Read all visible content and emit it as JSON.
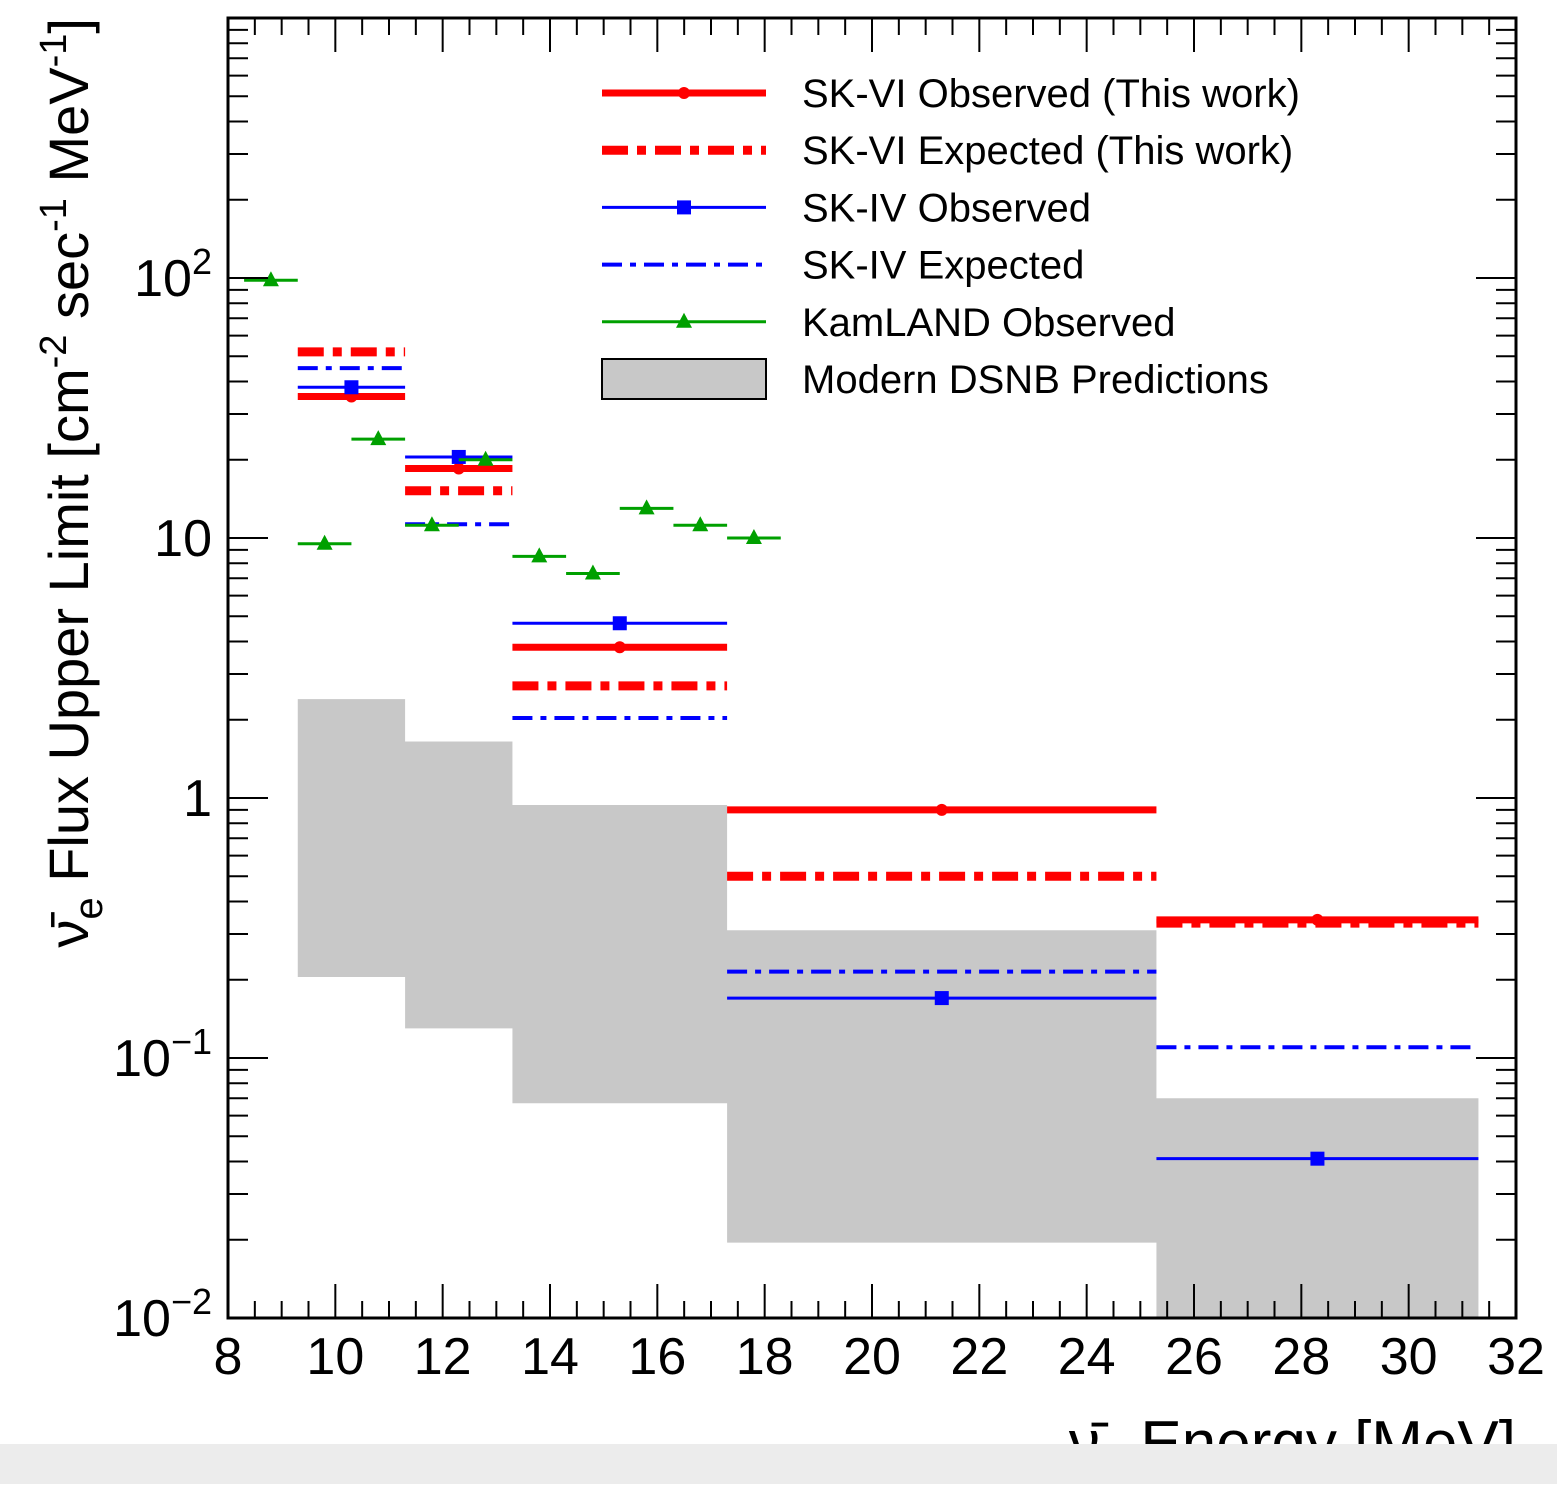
{
  "chart_data": {
    "type": "scatter",
    "xlabel": {
      "symbol": "ν̄",
      "sub": "e",
      "text": " Energy [MeV]"
    },
    "ylabel": {
      "symbol": "ν̄",
      "sub": "e",
      "text": " Flux Upper Limit [cm",
      "exp1": "-2",
      "mid": " sec",
      "exp2": "-1",
      "end": " MeV",
      "exp3": "-1",
      "close": "]"
    },
    "xlim": [
      8,
      32
    ],
    "ylim": [
      0.01,
      1000
    ],
    "yscale": "log",
    "x_ticks": [
      "8",
      "10",
      "12",
      "14",
      "16",
      "18",
      "20",
      "22",
      "24",
      "26",
      "28",
      "30",
      "32"
    ],
    "y_ticks": [
      {
        "value": 0.01,
        "base": "10",
        "exp": "−2"
      },
      {
        "value": 0.1,
        "base": "10",
        "exp": "−1"
      },
      {
        "value": 1,
        "base": "1",
        "exp": ""
      },
      {
        "value": 10,
        "base": "10",
        "exp": ""
      },
      {
        "value": 100,
        "base": "10",
        "exp": "2"
      }
    ],
    "legend_position": "top-right",
    "series": [
      {
        "name": "SK-VI Observed (This work)",
        "color": "#ff0000",
        "style": "solid-thick",
        "marker": "circle",
        "bins": [
          {
            "x0": 9.3,
            "x1": 11.3,
            "xc": 10.3,
            "y": 35
          },
          {
            "x0": 11.3,
            "x1": 13.3,
            "xc": 12.3,
            "y": 18.5
          },
          {
            "x0": 13.3,
            "x1": 17.3,
            "xc": 15.3,
            "y": 3.8
          },
          {
            "x0": 17.3,
            "x1": 25.3,
            "xc": 21.3,
            "y": 0.9
          },
          {
            "x0": 25.3,
            "x1": 31.3,
            "xc": 28.3,
            "y": 0.34
          }
        ]
      },
      {
        "name": "SK-VI Expected (This work)",
        "color": "#ff0000",
        "style": "dashdot-thick",
        "marker": "none",
        "bins": [
          {
            "x0": 9.3,
            "x1": 11.3,
            "xc": 10.3,
            "y": 52
          },
          {
            "x0": 11.3,
            "x1": 13.3,
            "xc": 12.3,
            "y": 15.2
          },
          {
            "x0": 13.3,
            "x1": 17.3,
            "xc": 15.3,
            "y": 2.7
          },
          {
            "x0": 17.3,
            "x1": 25.3,
            "xc": 21.3,
            "y": 0.5
          },
          {
            "x0": 25.3,
            "x1": 31.3,
            "xc": 28.3,
            "y": 0.33
          }
        ]
      },
      {
        "name": "SK-IV Observed",
        "color": "#0000ff",
        "style": "solid-thin",
        "marker": "square",
        "bins": [
          {
            "x0": 9.3,
            "x1": 11.3,
            "xc": 10.3,
            "y": 38
          },
          {
            "x0": 11.3,
            "x1": 13.3,
            "xc": 12.3,
            "y": 20.5
          },
          {
            "x0": 13.3,
            "x1": 17.3,
            "xc": 15.3,
            "y": 4.7
          },
          {
            "x0": 17.3,
            "x1": 25.3,
            "xc": 21.3,
            "y": 0.17
          },
          {
            "x0": 25.3,
            "x1": 31.3,
            "xc": 28.3,
            "y": 0.041
          }
        ]
      },
      {
        "name": "SK-IV Expected",
        "color": "#0000ff",
        "style": "dashdot-thin",
        "marker": "none",
        "bins": [
          {
            "x0": 9.3,
            "x1": 11.3,
            "xc": 10.3,
            "y": 45
          },
          {
            "x0": 11.3,
            "x1": 13.3,
            "xc": 12.3,
            "y": 11.3
          },
          {
            "x0": 13.3,
            "x1": 17.3,
            "xc": 15.3,
            "y": 2.03
          },
          {
            "x0": 17.3,
            "x1": 25.3,
            "xc": 21.3,
            "y": 0.215
          },
          {
            "x0": 25.3,
            "x1": 31.3,
            "xc": 28.3,
            "y": 0.11
          }
        ]
      },
      {
        "name": "KamLAND Observed",
        "color": "#00a000",
        "style": "solid-thin",
        "marker": "triangle",
        "bins": [
          {
            "x0": 8.3,
            "x1": 9.3,
            "xc": 8.8,
            "y": 98
          },
          {
            "x0": 9.3,
            "x1": 10.3,
            "xc": 9.8,
            "y": 9.5
          },
          {
            "x0": 10.3,
            "x1": 11.3,
            "xc": 10.8,
            "y": 24
          },
          {
            "x0": 11.3,
            "x1": 12.3,
            "xc": 11.8,
            "y": 11.2
          },
          {
            "x0": 12.3,
            "x1": 13.3,
            "xc": 12.8,
            "y": 20
          },
          {
            "x0": 13.3,
            "x1": 14.3,
            "xc": 13.8,
            "y": 8.5
          },
          {
            "x0": 14.3,
            "x1": 15.3,
            "xc": 14.8,
            "y": 7.3
          },
          {
            "x0": 15.3,
            "x1": 16.3,
            "xc": 15.8,
            "y": 13
          },
          {
            "x0": 16.3,
            "x1": 17.3,
            "xc": 16.8,
            "y": 11.2
          },
          {
            "x0": 17.3,
            "x1": 18.3,
            "xc": 17.8,
            "y": 10
          }
        ]
      }
    ],
    "band": {
      "name": "Modern DSNB Predictions",
      "color": "#c8c8c8",
      "bins": [
        {
          "x0": 9.3,
          "x1": 11.3,
          "low": 0.205,
          "high": 2.4
        },
        {
          "x0": 11.3,
          "x1": 13.3,
          "low": 0.13,
          "high": 1.65
        },
        {
          "x0": 13.3,
          "x1": 17.3,
          "low": 0.067,
          "high": 0.94
        },
        {
          "x0": 17.3,
          "x1": 25.3,
          "low": 0.0195,
          "high": 0.31
        },
        {
          "x0": 25.3,
          "x1": 31.3,
          "low": 0.0095,
          "high": 0.07
        }
      ]
    }
  }
}
